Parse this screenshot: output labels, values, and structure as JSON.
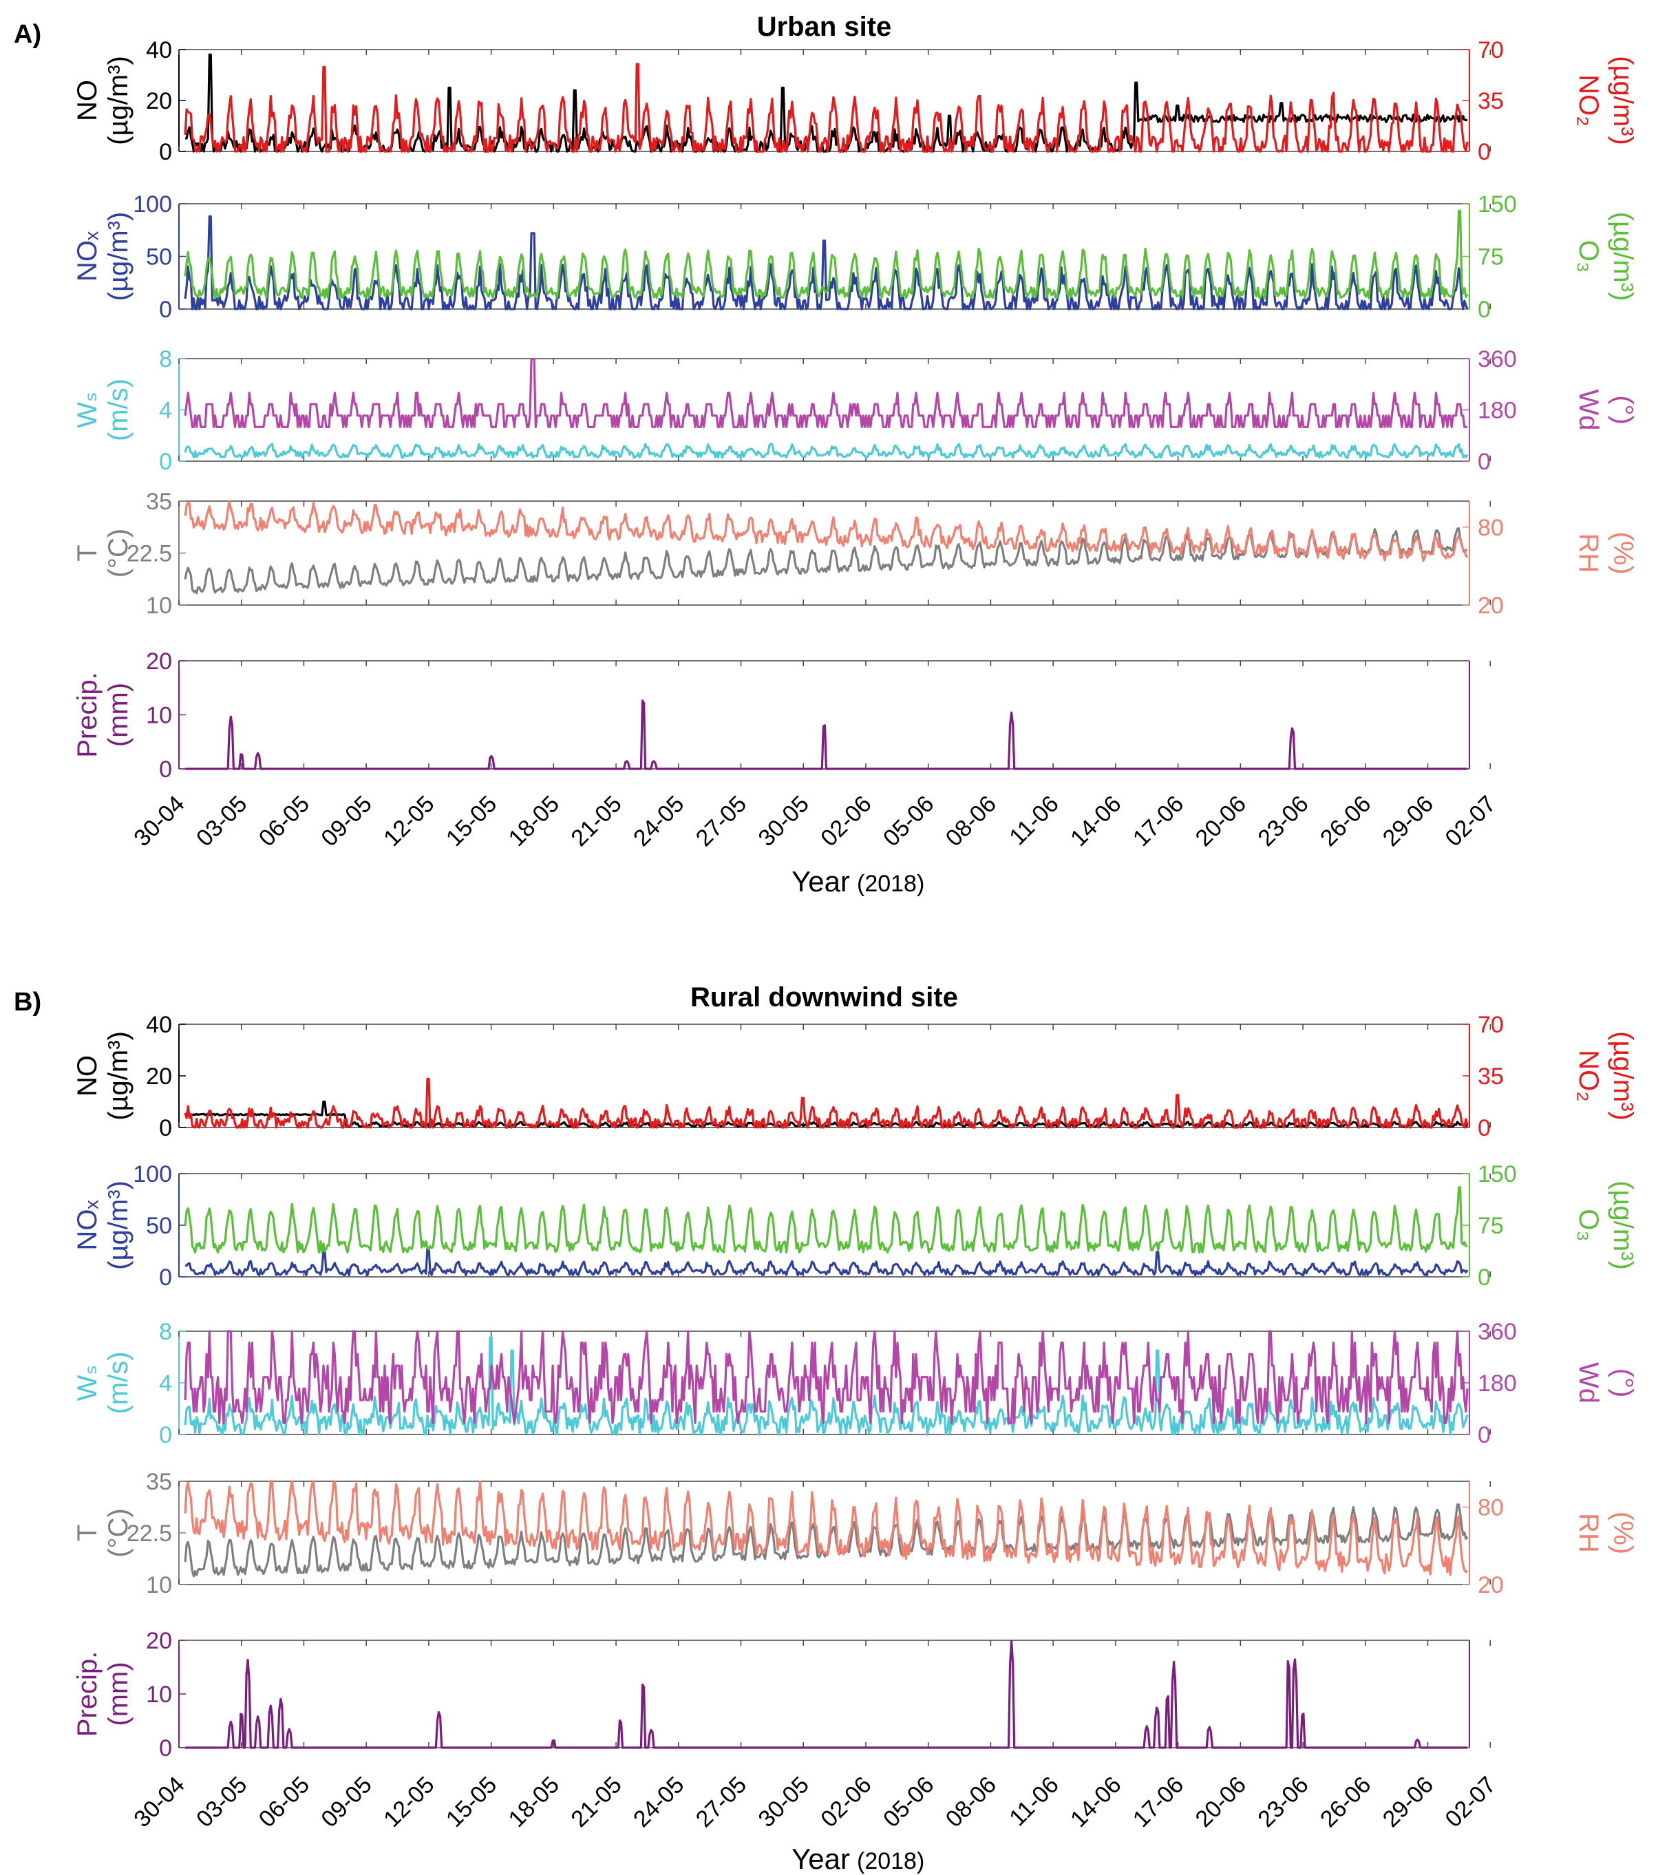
{
  "figure": {
    "xlabel_main": "Year",
    "xlabel_sub": "(2018)",
    "date_ticks": [
      "30-04",
      "03-05",
      "06-05",
      "09-05",
      "12-05",
      "15-05",
      "18-05",
      "21-05",
      "24-05",
      "27-05",
      "30-05",
      "02-06",
      "05-06",
      "08-06",
      "11-06",
      "14-06",
      "17-06",
      "20-06",
      "23-06",
      "26-06",
      "29-06",
      "02-07"
    ]
  },
  "colors": {
    "NO": "#000000",
    "NO2": "#e41a1c",
    "NOx": "#2e3f9e",
    "O3": "#5cbf3c",
    "Ws": "#4ec9d8",
    "Wd": "#b446a8",
    "T": "#7f7f7f",
    "RH": "#f08070",
    "Precip": "#7b1d7e"
  },
  "panels": [
    {
      "letter": "A)",
      "title": "Urban site",
      "rows": [
        {
          "left": {
            "name": "NO",
            "unit": "(µg/m³)",
            "color": "NO",
            "ylim": [
              0,
              40
            ],
            "ticks": [
              "0",
              "20",
              "40"
            ]
          },
          "right": {
            "name": "NO₂",
            "unit": "(µg/m³)",
            "color": "NO2",
            "ylim": [
              0,
              70
            ],
            "ticks": [
              "0",
              "35",
              "70"
            ]
          }
        },
        {
          "left": {
            "name": "NOₓ",
            "unit": "(µg/m³)",
            "color": "NOx",
            "ylim": [
              0,
              100
            ],
            "ticks": [
              "0",
              "50",
              "100"
            ]
          },
          "right": {
            "name": "O₃",
            "unit": "(µg/m³)",
            "color": "O3",
            "ylim": [
              0,
              150
            ],
            "ticks": [
              "0",
              "75",
              "150"
            ]
          }
        },
        {
          "left": {
            "name": "Wₛ",
            "unit": "(m/s)",
            "color": "Ws",
            "ylim": [
              0,
              8
            ],
            "ticks": [
              "0",
              "4",
              "8"
            ]
          },
          "right": {
            "name": "W_d",
            "unit": "(°)",
            "color": "Wd",
            "ylim": [
              0,
              360
            ],
            "ticks": [
              "0",
              "180",
              "360"
            ]
          }
        },
        {
          "left": {
            "name": "T",
            "unit": "(°C)",
            "color": "T",
            "ylim": [
              10,
              35
            ],
            "ticks": [
              "10",
              "22.5",
              "35"
            ]
          },
          "right": {
            "name": "RH",
            "unit": "(%)",
            "color": "RH",
            "ylim": [
              20,
              100
            ],
            "ticks": [
              "20",
              "80"
            ]
          }
        },
        {
          "left": {
            "name": "Precip.",
            "unit": "(mm)",
            "color": "Precip",
            "ylim": [
              0,
              20
            ],
            "ticks": [
              "0",
              "10",
              "20"
            ]
          },
          "right": null
        }
      ]
    },
    {
      "letter": "B)",
      "title": "Rural downwind site",
      "rows": [
        {
          "left": {
            "name": "NO",
            "unit": "(µg/m³)",
            "color": "NO",
            "ylim": [
              0,
              40
            ],
            "ticks": [
              "0",
              "20",
              "40"
            ]
          },
          "right": {
            "name": "NO₂",
            "unit": "(µg/m³)",
            "color": "NO2",
            "ylim": [
              0,
              70
            ],
            "ticks": [
              "0",
              "35",
              "70"
            ]
          }
        },
        {
          "left": {
            "name": "NOₓ",
            "unit": "(µg/m³)",
            "color": "NOx",
            "ylim": [
              0,
              100
            ],
            "ticks": [
              "0",
              "50",
              "100"
            ]
          },
          "right": {
            "name": "O₃",
            "unit": "(µg/m³)",
            "color": "O3",
            "ylim": [
              0,
              150
            ],
            "ticks": [
              "0",
              "75",
              "150"
            ]
          }
        },
        {
          "left": {
            "name": "Wₛ",
            "unit": "(m/s)",
            "color": "Ws",
            "ylim": [
              0,
              8
            ],
            "ticks": [
              "0",
              "4",
              "8"
            ]
          },
          "right": {
            "name": "W_d",
            "unit": "(°)",
            "color": "Wd",
            "ylim": [
              0,
              360
            ],
            "ticks": [
              "0",
              "180",
              "360"
            ]
          }
        },
        {
          "left": {
            "name": "T",
            "unit": "(°C)",
            "color": "T",
            "ylim": [
              10,
              35
            ],
            "ticks": [
              "10",
              "22.5",
              "35"
            ]
          },
          "right": {
            "name": "RH",
            "unit": "(%)",
            "color": "RH",
            "ylim": [
              20,
              100
            ],
            "ticks": [
              "20",
              "80"
            ]
          }
        },
        {
          "left": {
            "name": "Precip.",
            "unit": "(mm)",
            "color": "Precip",
            "ylim": [
              0,
              20
            ],
            "ticks": [
              "0",
              "10",
              "20"
            ]
          },
          "right": null
        }
      ]
    }
  ],
  "chart_data": [
    {
      "type": "line",
      "title": "Urban site",
      "xlabel": "Year (2018)",
      "x_range_days": [
        0,
        62
      ],
      "x_origin": "30-04",
      "series": [
        {
          "name": "NO",
          "axis": "left",
          "panel_row": 0,
          "base": 3,
          "amp": 6,
          "noise": 3,
          "spikes": [
            [
              1.5,
              38
            ],
            [
              13,
              25
            ],
            [
              19,
              24
            ],
            [
              29,
              25
            ],
            [
              37,
              14
            ],
            [
              46,
              27
            ],
            [
              48,
              18
            ],
            [
              53,
              19
            ]
          ],
          "level_changes": [
            [
              46,
              62,
              13
            ]
          ]
        },
        {
          "name": "NO2",
          "axis": "right",
          "panel_row": 0,
          "base": 12,
          "amp": 30,
          "noise": 8,
          "spikes": [
            [
              7,
              58
            ],
            [
              22,
              60
            ],
            [
              62,
              63
            ]
          ]
        },
        {
          "name": "NOx",
          "axis": "left",
          "panel_row": 1,
          "base": 12,
          "amp": 30,
          "noise": 10,
          "spikes": [
            [
              1.5,
              88
            ],
            [
              17,
              72
            ],
            [
              31,
              65
            ]
          ]
        },
        {
          "name": "O3",
          "axis": "right",
          "panel_row": 1,
          "base": 40,
          "amp": 55,
          "noise": 8,
          "spikes": [
            [
              61.5,
              140
            ]
          ]
        },
        {
          "name": "Ws",
          "axis": "left",
          "panel_row": 2,
          "base": 0.7,
          "amp": 0.6,
          "noise": 0.25
        },
        {
          "name": "Wd",
          "axis": "right",
          "panel_row": 2,
          "base": 160,
          "amp": 70,
          "noise": 30,
          "steps": true,
          "spikes": [
            [
              17,
              358
            ]
          ]
        },
        {
          "name": "T",
          "axis": "left",
          "panel_row": 3,
          "base": 15,
          "amp": 5,
          "noise": 0.8,
          "trend": [
            15,
            25
          ]
        },
        {
          "name": "RH",
          "axis": "right",
          "panel_row": 3,
          "base": 80,
          "amp": 14,
          "noise": 5,
          "trend": [
            88,
            62
          ]
        },
        {
          "name": "Precip",
          "axis": "left",
          "panel_row": 4,
          "events": [
            [
              2.5,
              10
            ],
            [
              3,
              3
            ],
            [
              3.8,
              3
            ],
            [
              15,
              2.5
            ],
            [
              21.5,
              1.5
            ],
            [
              22.3,
              14
            ],
            [
              22.8,
              1.5
            ],
            [
              31,
              9
            ],
            [
              40,
              10.5
            ],
            [
              53.5,
              8
            ]
          ]
        }
      ]
    },
    {
      "type": "line",
      "title": "Rural downwind site",
      "xlabel": "Year (2018)",
      "x_range_days": [
        0,
        62
      ],
      "x_origin": "30-04",
      "series": [
        {
          "name": "NO",
          "axis": "left",
          "panel_row": 0,
          "base": 1,
          "amp": 1,
          "noise": 0.5,
          "level_changes": [
            [
              0,
              8,
              5
            ]
          ],
          "spikes": [
            [
              7,
              10
            ]
          ]
        },
        {
          "name": "NO2",
          "axis": "right",
          "panel_row": 0,
          "base": 5,
          "amp": 9,
          "noise": 4,
          "spikes": [
            [
              12,
              33
            ],
            [
              30,
              20
            ],
            [
              48,
              22
            ]
          ]
        },
        {
          "name": "NOx",
          "axis": "left",
          "panel_row": 1,
          "base": 7,
          "amp": 8,
          "noise": 3,
          "spikes": [
            [
              7,
              25
            ],
            [
              12,
              28
            ],
            [
              47,
              24
            ]
          ]
        },
        {
          "name": "O3",
          "axis": "right",
          "panel_row": 1,
          "base": 60,
          "amp": 55,
          "noise": 8,
          "spikes": [
            [
              61.5,
              130
            ]
          ]
        },
        {
          "name": "Ws",
          "axis": "left",
          "panel_row": 2,
          "base": 1.2,
          "amp": 1.5,
          "noise": 0.8,
          "spikes": [
            [
              15,
              7.5
            ],
            [
              16,
              6.5
            ],
            [
              47,
              6.5
            ]
          ]
        },
        {
          "name": "Wd",
          "axis": "right",
          "panel_row": 2,
          "base": 180,
          "amp": 150,
          "noise": 90,
          "steps": true
        },
        {
          "name": "T",
          "axis": "left",
          "panel_row": 3,
          "base": 17,
          "amp": 7,
          "noise": 1,
          "trend": [
            15,
            24
          ]
        },
        {
          "name": "RH",
          "axis": "right",
          "panel_row": 3,
          "base": 60,
          "amp": 35,
          "noise": 8,
          "trend": [
            75,
            45
          ]
        },
        {
          "name": "Precip",
          "axis": "left",
          "panel_row": 4,
          "events": [
            [
              2.5,
              5
            ],
            [
              3,
              7
            ],
            [
              3.3,
              17
            ],
            [
              3.8,
              6
            ],
            [
              4.4,
              8
            ],
            [
              4.9,
              9.5
            ],
            [
              5.3,
              3.5
            ],
            [
              12.5,
              7
            ],
            [
              18,
              1.5
            ],
            [
              21.2,
              5.5
            ],
            [
              22.3,
              13
            ],
            [
              22.7,
              3.5
            ],
            [
              40,
              20
            ],
            [
              46.5,
              4
            ],
            [
              47,
              8
            ],
            [
              47.5,
              10.5
            ],
            [
              47.8,
              16
            ],
            [
              49.5,
              4
            ],
            [
              53.3,
              17.5
            ],
            [
              53.6,
              17.5
            ],
            [
              54,
              7
            ],
            [
              59.5,
              1.5
            ]
          ]
        }
      ]
    }
  ]
}
